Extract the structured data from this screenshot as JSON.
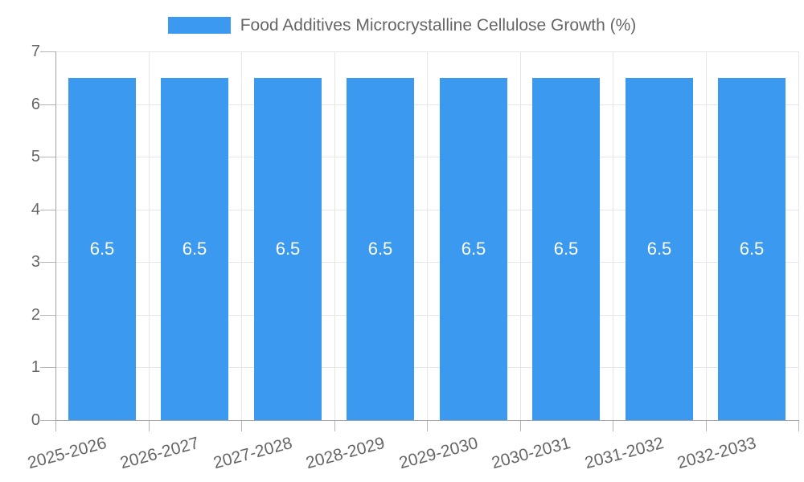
{
  "legend": {
    "label": "Food Additives Microcrystalline Cellulose Growth (%)"
  },
  "chart_data": {
    "type": "bar",
    "title": "Food Additives Microcrystalline Cellulose Growth (%)",
    "categories": [
      "2025-2026",
      "2026-2027",
      "2027-2028",
      "2028-2029",
      "2029-2030",
      "2030-2031",
      "2031-2032",
      "2032-2033"
    ],
    "values": [
      6.5,
      6.5,
      6.5,
      6.5,
      6.5,
      6.5,
      6.5,
      6.5
    ],
    "bar_labels": [
      "6.5",
      "6.5",
      "6.5",
      "6.5",
      "6.5",
      "6.5",
      "6.5",
      "6.5"
    ],
    "xlabel": "",
    "ylabel": "",
    "ylim": [
      0,
      7
    ],
    "yticks": [
      0,
      1,
      2,
      3,
      4,
      5,
      6,
      7
    ],
    "grid": true,
    "legend_position": "top",
    "x_label_rotation_deg": -15,
    "colors": {
      "bar": "#3b99f0",
      "bar_label": "#ffffff",
      "axis_text": "#666666",
      "grid_line": "#e6e6e6",
      "axis_line": "#a3a3a3",
      "tick_mark": "#b5b5b5",
      "background": "#ffffff"
    }
  }
}
